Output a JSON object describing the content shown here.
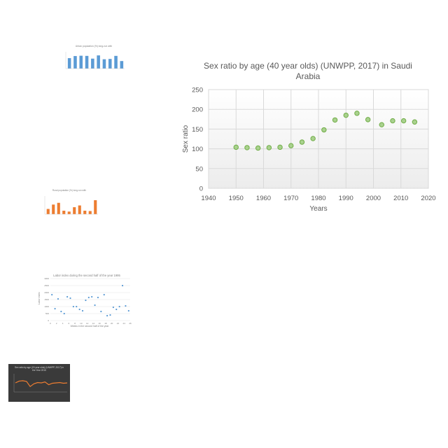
{
  "thumbnails": [
    {
      "title": "Urban population (%) long-run with ",
      "subtitle": "",
      "chart_type": "bar",
      "color": "#5b9bd5",
      "values": [
        65,
        78,
        80,
        79,
        62,
        82,
        58,
        60,
        79,
        47
      ]
    },
    {
      "title": "Rural population (%) long-run with ",
      "subtitle": "",
      "chart_type": "bar",
      "color": "#ed7d31",
      "values": [
        30,
        55,
        65,
        20,
        15,
        40,
        50,
        20,
        18,
        80
      ]
    },
    {
      "title": "Labor index during the second half of the year 1995",
      "chart_type": "scatter",
      "color": "#5b9bd5",
      "ylabel": "Labor index",
      "xlabel": "Weeks in the second half of the year",
      "y_ticks": [
        "3000",
        "2500",
        "2000",
        "1500",
        "1000",
        "500",
        "0"
      ],
      "x_ticks": [
        "0",
        "2",
        "4",
        "6",
        "8",
        "10",
        "12",
        "14",
        "16",
        "18",
        "20",
        "22",
        "24",
        "26"
      ],
      "points": [
        [
          0.5,
          1850
        ],
        [
          1.5,
          850
        ],
        [
          2.5,
          1550
        ],
        [
          3.5,
          650
        ],
        [
          4.5,
          500
        ],
        [
          5.5,
          1700
        ],
        [
          6.5,
          1600
        ],
        [
          7.5,
          1000
        ],
        [
          8.5,
          1000
        ],
        [
          9.5,
          800
        ],
        [
          10.5,
          700
        ],
        [
          11.5,
          1450
        ],
        [
          12.5,
          1650
        ],
        [
          13.5,
          1700
        ],
        [
          14.5,
          1100
        ],
        [
          15.5,
          1650
        ],
        [
          16.5,
          650
        ],
        [
          17.5,
          1850
        ],
        [
          18.5,
          350
        ],
        [
          19.5,
          400
        ],
        [
          20.5,
          950
        ],
        [
          21.5,
          800
        ],
        [
          22.5,
          1000
        ],
        [
          23.5,
          2500
        ],
        [
          24.5,
          1050
        ],
        [
          25.5,
          700
        ]
      ]
    },
    {
      "title": "Sex ratio by age (20 year olds) (UNWPP, 2017) in",
      "subtitle": "the Year 2015",
      "chart_type": "line",
      "color": "#ed7d31",
      "background": "#3a3a3a",
      "values": [
        50,
        60,
        62,
        58,
        30,
        45,
        52,
        50,
        55,
        40,
        48,
        50,
        52,
        48,
        50
      ]
    }
  ],
  "chart_data": {
    "type": "scatter",
    "title_line1": "Sex ratio by age (40 year olds) (UNWPP, 2017) in Saudi",
    "title_line2": "Arabia",
    "xlabel": "Years",
    "ylabel": "Sex ratio",
    "xlim": [
      1940,
      2020
    ],
    "ylim": [
      0,
      250
    ],
    "x_ticks": [
      1940,
      1950,
      1960,
      1970,
      1980,
      1990,
      2000,
      2010,
      2020
    ],
    "y_ticks": [
      0,
      50,
      100,
      150,
      200,
      250
    ],
    "grid": true,
    "marker_fill": "#a9d18e",
    "marker_stroke": "#70ad47",
    "x": [
      1950,
      1954,
      1958,
      1962,
      1966,
      1970,
      1974,
      1978,
      1982,
      1986,
      1990,
      1994,
      1998,
      2003,
      2007,
      2011,
      2015
    ],
    "y": [
      104,
      103,
      102,
      103,
      104,
      108,
      117,
      126,
      148,
      173,
      185,
      190,
      174,
      161,
      171,
      171,
      168
    ]
  }
}
